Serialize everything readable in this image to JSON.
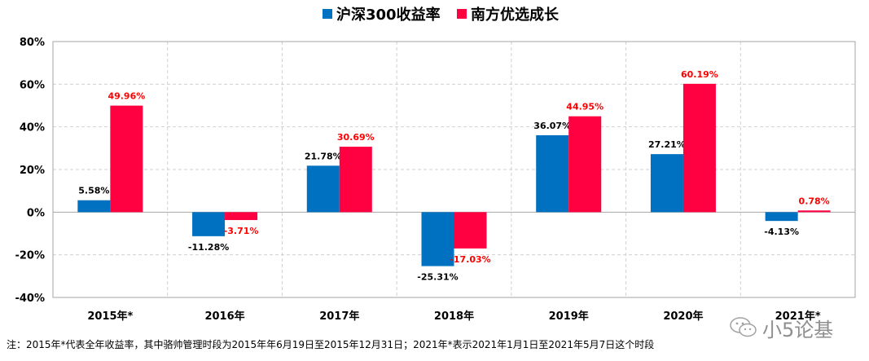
{
  "chart_data": {
    "type": "bar",
    "categories": [
      "2015年*",
      "2016年",
      "2017年",
      "2018年",
      "2019年",
      "2020年",
      "2021年*"
    ],
    "series": [
      {
        "name": "沪深300收益率",
        "color": "#0070C0",
        "values": [
          5.58,
          -11.28,
          21.78,
          -25.31,
          36.07,
          27.21,
          -4.13
        ],
        "labels": [
          "5.58%",
          "-11.28%",
          "21.78%",
          "-25.31%",
          "36.07%",
          "27.21%",
          "-4.13%"
        ],
        "label_color": "#000000"
      },
      {
        "name": "南方优选成长",
        "color": "#FF0040",
        "values": [
          49.96,
          -3.71,
          30.69,
          -17.03,
          44.95,
          60.19,
          0.78
        ],
        "labels": [
          "49.96%",
          "-3.71%",
          "30.69%",
          "-17.03%",
          "44.95%",
          "60.19%",
          "0.78%"
        ],
        "label_color": "#FF0000"
      }
    ],
    "ylim": [
      -40,
      80
    ],
    "yticks": [
      80,
      60,
      40,
      20,
      0,
      -20,
      -40
    ],
    "ytick_labels": [
      "80%",
      "60%",
      "40%",
      "20%",
      "0%",
      "-20%",
      "-40%"
    ],
    "grid": true,
    "legend_position": "top-center"
  },
  "footnote": "注：2015年*代表全年收益率，其中骆帅管理时段为2015年年6月19日至2015年12月31日；2021年*表示2021年1月1日至2021年5月7日这个时段",
  "watermark": {
    "icon": "wechat-icon",
    "text": "小5论基"
  }
}
